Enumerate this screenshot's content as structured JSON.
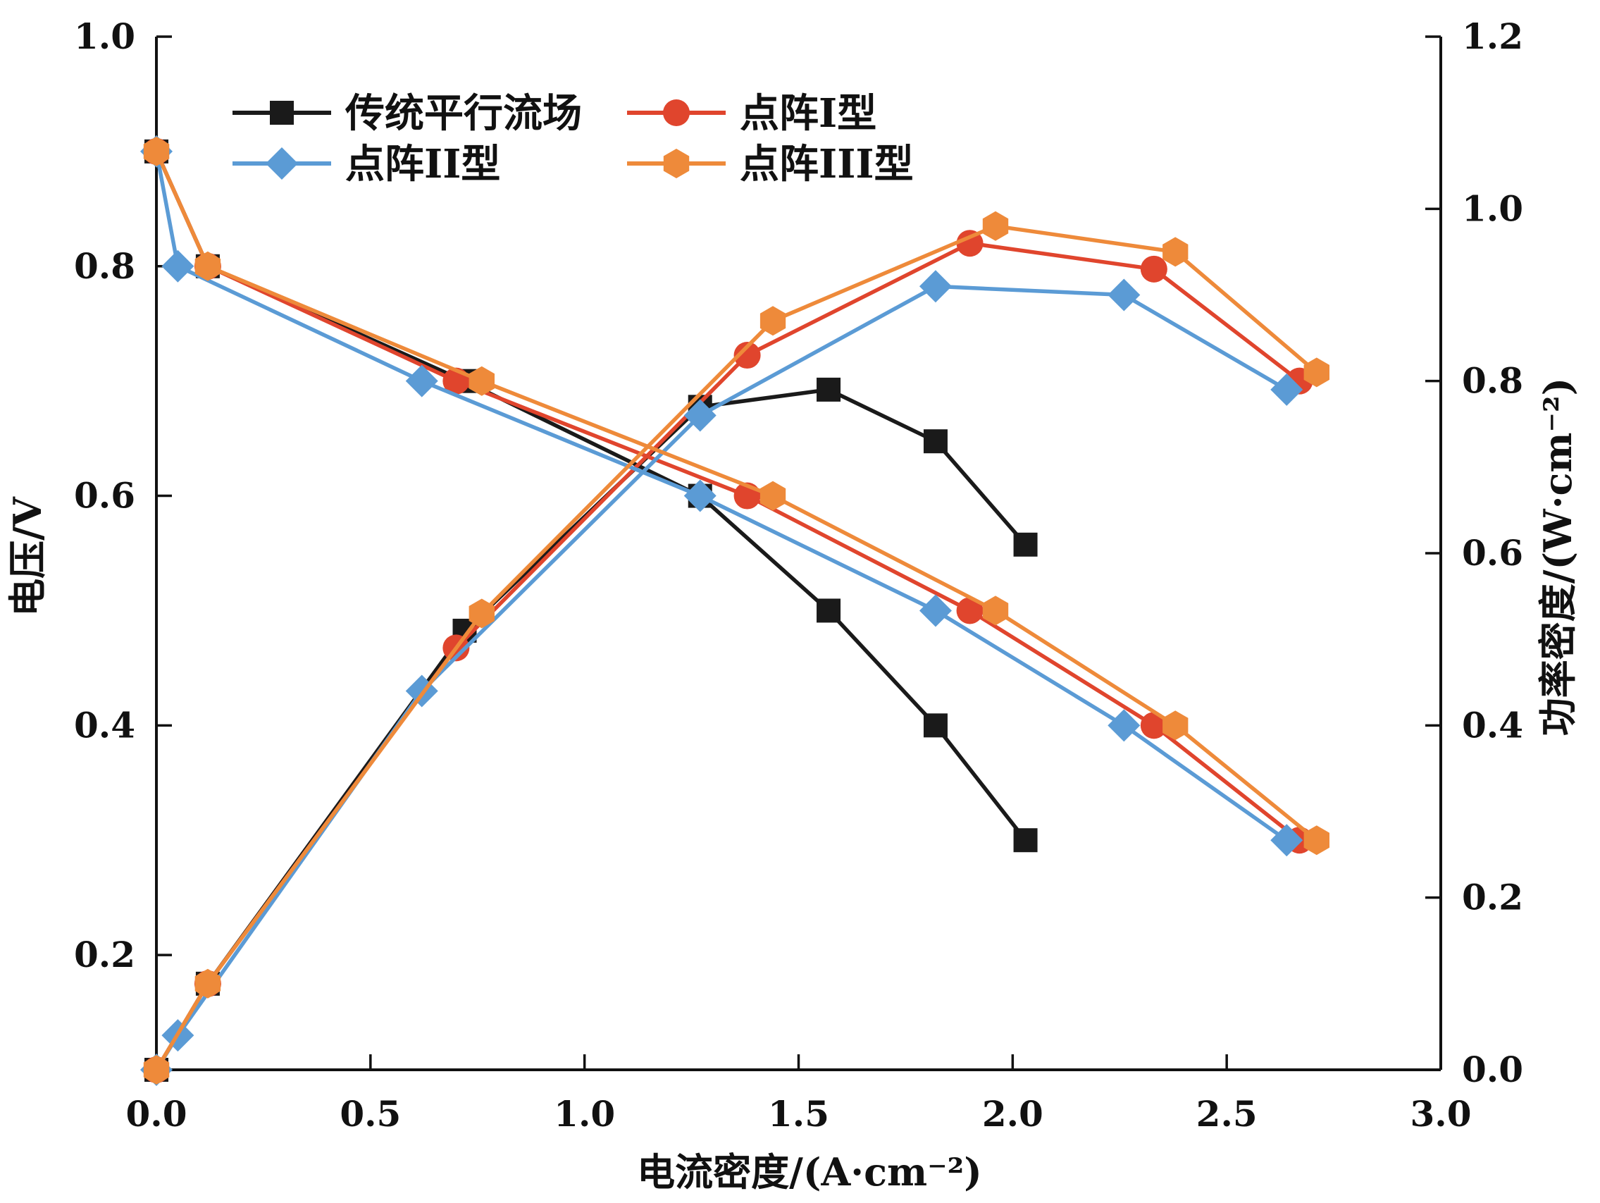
{
  "chart_data": {
    "type": "line",
    "title": "",
    "xlabel": "电流密度/(A·cm⁻²)",
    "ylabel_left": "电压/V",
    "ylabel_right": "功率密度/(W·cm⁻²)",
    "xlim": [
      0,
      3.0
    ],
    "ylim_left": [
      0.1,
      1.0
    ],
    "ylim_right": [
      0.0,
      1.2
    ],
    "xticks": [
      "0.0",
      "0.5",
      "1.0",
      "1.5",
      "2.0",
      "2.5",
      "3.0"
    ],
    "yticks_left": [
      "0.2",
      "0.4",
      "0.6",
      "0.8",
      "1.0"
    ],
    "yticks_right": [
      "0.0",
      "0.2",
      "0.4",
      "0.6",
      "0.8",
      "1.0",
      "1.2"
    ],
    "grid": false,
    "legend_position": "top-left",
    "series": [
      {
        "name": "传统平行流场",
        "color": "#1a1a1a",
        "marker": "square",
        "voltage": {
          "x": [
            0.0,
            0.12,
            0.72,
            1.27,
            1.57,
            1.82,
            2.03
          ],
          "y": [
            0.9,
            0.8,
            0.7,
            0.6,
            0.5,
            0.4,
            0.3
          ]
        },
        "power": {
          "x": [
            0.0,
            0.12,
            0.72,
            1.27,
            1.57,
            1.82,
            2.03
          ],
          "y": [
            0.0,
            0.1,
            0.51,
            0.77,
            0.79,
            0.73,
            0.61
          ]
        }
      },
      {
        "name": "点阵I型",
        "color": "#e0452d",
        "marker": "circle",
        "voltage": {
          "x": [
            0.0,
            0.12,
            0.7,
            1.38,
            1.9,
            2.33,
            2.67
          ],
          "y": [
            0.9,
            0.8,
            0.7,
            0.6,
            0.5,
            0.4,
            0.3
          ]
        },
        "power": {
          "x": [
            0.0,
            0.12,
            0.7,
            1.38,
            1.9,
            2.33,
            2.67
          ],
          "y": [
            0.0,
            0.1,
            0.49,
            0.83,
            0.96,
            0.93,
            0.8
          ]
        }
      },
      {
        "name": "点阵II型",
        "color": "#5b9bd5",
        "marker": "diamond",
        "voltage": {
          "x": [
            0.0,
            0.05,
            0.62,
            1.27,
            1.82,
            2.26,
            2.64
          ],
          "y": [
            0.9,
            0.8,
            0.7,
            0.6,
            0.5,
            0.4,
            0.3
          ]
        },
        "power": {
          "x": [
            0.0,
            0.05,
            0.62,
            1.27,
            1.82,
            2.26,
            2.64
          ],
          "y": [
            0.0,
            0.04,
            0.44,
            0.76,
            0.91,
            0.9,
            0.79
          ]
        }
      },
      {
        "name": "点阵III型",
        "color": "#ee8a3a",
        "marker": "hexagon",
        "voltage": {
          "x": [
            0.0,
            0.12,
            0.76,
            1.44,
            1.96,
            2.38,
            2.71
          ],
          "y": [
            0.9,
            0.8,
            0.7,
            0.6,
            0.5,
            0.4,
            0.3
          ]
        },
        "power": {
          "x": [
            0.0,
            0.12,
            0.76,
            1.44,
            1.96,
            2.38,
            2.71
          ],
          "y": [
            0.0,
            0.1,
            0.53,
            0.87,
            0.98,
            0.95,
            0.81
          ]
        }
      }
    ]
  }
}
